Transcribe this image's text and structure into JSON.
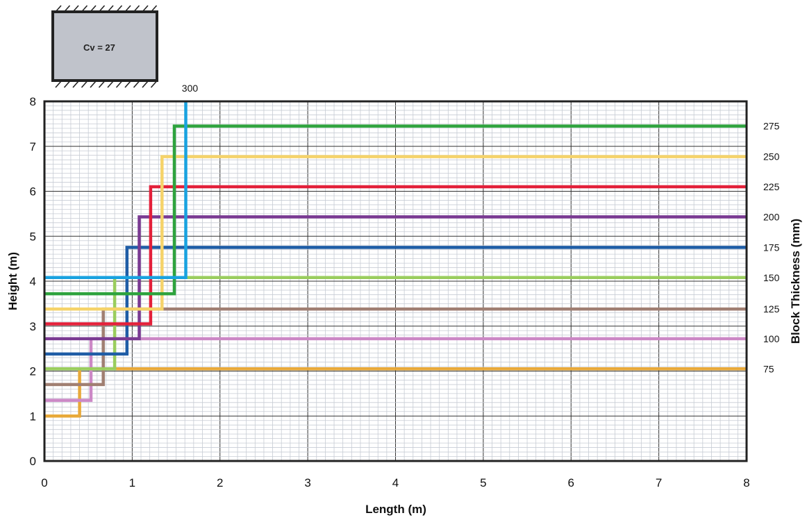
{
  "header_box": {
    "label": "Cv = 27",
    "fill": "#C0C3CB"
  },
  "chart_data": {
    "type": "line",
    "xlabel": "Length (m)",
    "ylabel": "Height (m)",
    "y2label": "Block Thickness (mm)",
    "xlim": [
      0,
      8
    ],
    "ylim": [
      0,
      8
    ],
    "x_ticks": [
      "0",
      "1",
      "2",
      "3",
      "4",
      "5",
      "6",
      "7",
      "8"
    ],
    "y_ticks": [
      "0",
      "1",
      "2",
      "3",
      "4",
      "5",
      "6",
      "7",
      "8"
    ],
    "grid": "major and minor",
    "series": [
      {
        "name": "75",
        "color": "#E8A93A",
        "points": [
          [
            0,
            1.0
          ],
          [
            0.4,
            1.0
          ],
          [
            0.4,
            2.05
          ],
          [
            8,
            2.05
          ]
        ]
      },
      {
        "name": "100",
        "color": "#CC88C6",
        "points": [
          [
            0,
            1.35
          ],
          [
            0.53,
            1.35
          ],
          [
            0.53,
            2.72
          ],
          [
            8,
            2.72
          ]
        ]
      },
      {
        "name": "125",
        "color": "#A07F72",
        "points": [
          [
            0,
            1.7
          ],
          [
            0.67,
            1.7
          ],
          [
            0.67,
            3.38
          ],
          [
            8,
            3.38
          ]
        ]
      },
      {
        "name": "150",
        "color": "#9ACD5E",
        "points": [
          [
            0,
            2.05
          ],
          [
            0.8,
            2.05
          ],
          [
            0.8,
            4.08
          ],
          [
            8,
            4.08
          ]
        ]
      },
      {
        "name": "175",
        "color": "#1F5DA6",
        "points": [
          [
            0,
            2.38
          ],
          [
            0.94,
            2.38
          ],
          [
            0.94,
            4.75
          ],
          [
            8,
            4.75
          ]
        ]
      },
      {
        "name": "200",
        "color": "#7A3A92",
        "points": [
          [
            0,
            2.72
          ],
          [
            1.08,
            2.72
          ],
          [
            1.08,
            5.43
          ],
          [
            8,
            5.43
          ]
        ]
      },
      {
        "name": "225",
        "color": "#E3203A",
        "points": [
          [
            0,
            3.05
          ],
          [
            1.21,
            3.05
          ],
          [
            1.21,
            6.1
          ],
          [
            8,
            6.1
          ]
        ]
      },
      {
        "name": "250",
        "color": "#F5D36A",
        "points": [
          [
            0,
            3.38
          ],
          [
            1.34,
            3.38
          ],
          [
            1.34,
            6.77
          ],
          [
            8,
            6.77
          ]
        ]
      },
      {
        "name": "275",
        "color": "#2EA33E",
        "points": [
          [
            0,
            3.72
          ],
          [
            1.48,
            3.72
          ],
          [
            1.48,
            7.45
          ],
          [
            8,
            7.45
          ]
        ]
      },
      {
        "name": "300",
        "color": "#19A2E0",
        "points": [
          [
            0,
            4.08
          ],
          [
            0.78,
            4.08
          ],
          [
            1.61,
            4.08
          ],
          [
            1.61,
            8.0
          ]
        ]
      }
    ]
  }
}
